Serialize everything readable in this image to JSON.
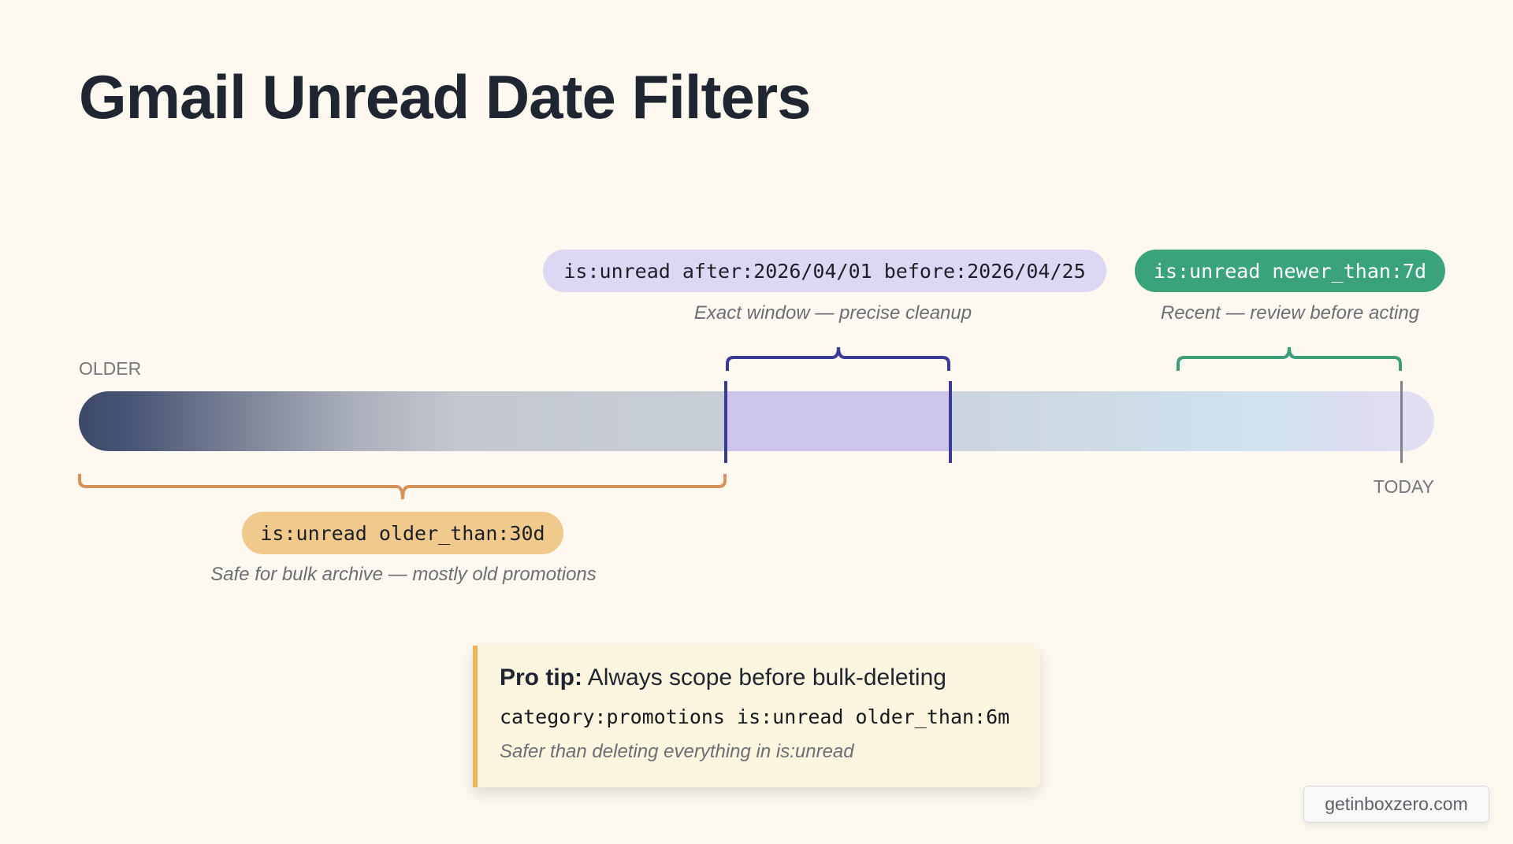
{
  "title": "Gmail Unread Date Filters",
  "axis": {
    "older_label": "OLDER",
    "today_label": "TODAY"
  },
  "filters": [
    {
      "query": "is:unread after:2026/04/01 before:2026/04/25",
      "caption": "Exact window — precise cleanup",
      "color": "#dcd8f3",
      "brace_color": "#3b3a96"
    },
    {
      "query": "is:unread newer_than:7d",
      "caption": "Recent — review before acting",
      "color": "#3ba37c",
      "brace_color": "#3f9e7a"
    },
    {
      "query": "is:unread older_than:30d",
      "caption": "Safe for bulk archive — mostly old promotions",
      "color": "#f0c98c",
      "brace_color": "#d6925a"
    }
  ],
  "tip": {
    "label": "Pro tip:",
    "text": " Always scope before bulk-deleting",
    "code": "category:promotions is:unread older_than:6m",
    "note": "Safer than deleting everything in is:unread"
  },
  "watermark": "getinboxzero.com",
  "colors": {
    "background": "#fdf9f0",
    "window": "#cdc5ec",
    "today_line": "#7f8288",
    "tip_accent": "#efb35a"
  }
}
